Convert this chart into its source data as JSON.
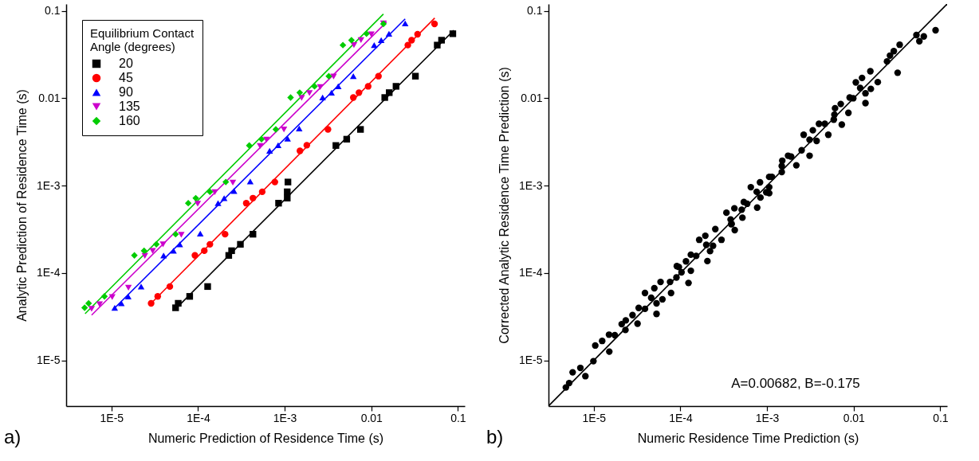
{
  "chart_data": [
    {
      "type": "scatter",
      "xlabel": "Numeric Prediction of Residence Time (s)",
      "ylabel": "Analytic Prediction of Residence Time (s)",
      "log": "xy",
      "xlim": [
        3e-06,
        0.12
      ],
      "ylim": [
        3e-06,
        0.12
      ],
      "xticks": [
        {
          "value": 1e-05,
          "label": "1E-5"
        },
        {
          "value": 0.0001,
          "label": "1E-4"
        },
        {
          "value": 0.001,
          "label": "1E-3"
        },
        {
          "value": 0.01,
          "label": "0.01"
        },
        {
          "value": 0.1,
          "label": "0.1"
        }
      ],
      "yticks": [
        {
          "value": 1e-05,
          "label": "1E-5"
        },
        {
          "value": 0.0001,
          "label": "1E-4"
        },
        {
          "value": 0.001,
          "label": "1E-3"
        },
        {
          "value": 0.01,
          "label": "0.01"
        },
        {
          "value": 0.1,
          "label": "0.1"
        }
      ],
      "legend": "top left",
      "legend_title": "Equilibrium Contact Angle (degrees)",
      "annotations": [
        "a)"
      ],
      "series": [
        {
          "name": "20",
          "color": "#000000",
          "marker": "square",
          "x": [
            5.5e-05,
            5.9e-05,
            8e-05,
            0.000129,
            0.000226,
            0.000244,
            0.000308,
            0.00043,
            0.00085,
            0.00107,
            0.00107,
            0.00109,
            0.0039,
            0.0052,
            0.0075,
            0.0143,
            0.0161,
            0.0193,
            0.0323,
            0.0577,
            0.0647,
            0.0873
          ],
          "values": [
            4e-05,
            4.5e-05,
            5.4e-05,
            7e-05,
            0.000159,
            0.00018,
            0.000213,
            0.000278,
            0.00063,
            0.00072,
            0.00085,
            0.0011,
            0.00288,
            0.0034,
            0.0044,
            0.0102,
            0.0116,
            0.0137,
            0.0179,
            0.0406,
            0.0462,
            0.0548
          ]
        },
        {
          "name": "45",
          "color": "#ff0000",
          "marker": "circle",
          "x": [
            2.87e-05,
            3.42e-05,
            4.72e-05,
            9.2e-05,
            0.000118,
            0.000137,
            0.000205,
            0.00036,
            0.00043,
            0.00055,
            0.00077,
            0.0015,
            0.0018,
            0.00316,
            0.0062,
            0.0072,
            0.0092,
            0.0121,
            0.0264,
            0.0292,
            0.0342,
            0.0537
          ],
          "values": [
            4.5e-05,
            5.4e-05,
            7e-05,
            0.000159,
            0.00018,
            0.000213,
            0.000278,
            0.00063,
            0.00072,
            0.00085,
            0.0011,
            0.0025,
            0.0029,
            0.0044,
            0.0102,
            0.0116,
            0.0137,
            0.0179,
            0.0406,
            0.0462,
            0.054,
            0.071
          ]
        },
        {
          "name": "90",
          "color": "#0000ff",
          "marker": "triangle",
          "x": [
            1.09e-05,
            1.3e-05,
            1.56e-05,
            2.2e-05,
            4e-05,
            5.2e-05,
            6.15e-05,
            0.000106,
            0.00017,
            0.0002,
            0.00026,
            0.0004,
            0.00067,
            0.00084,
            0.00108,
            0.00147,
            0.00274,
            0.00347,
            0.00415,
            0.0062,
            0.0108,
            0.013,
            0.016,
            0.0246
          ],
          "values": [
            4e-05,
            4.5e-05,
            5.4e-05,
            7e-05,
            0.000159,
            0.00018,
            0.000213,
            0.000282,
            0.00063,
            0.00072,
            0.00087,
            0.00112,
            0.0025,
            0.0029,
            0.00345,
            0.0045,
            0.0102,
            0.0116,
            0.0137,
            0.0179,
            0.0406,
            0.0462,
            0.0548,
            0.072
          ]
        },
        {
          "name": "135",
          "color": "#cc00cc",
          "marker": "triangle-down",
          "x": [
            5.9e-06,
            7.3e-06,
            1.02e-05,
            1.57e-05,
            2.43e-05,
            2.99e-05,
            3.94e-05,
            6.4e-05,
            9.9e-05,
            0.000156,
            0.000252,
            0.00052,
            0.000615,
            0.00098,
            0.00157,
            0.00193,
            0.00257,
            0.00367,
            0.0063,
            0.0076,
            0.01,
            0.0138
          ],
          "values": [
            3.9e-05,
            4.4e-05,
            5.3e-05,
            6.8e-05,
            0.000157,
            0.000179,
            0.000213,
            0.000274,
            0.00062,
            0.00084,
            0.00108,
            0.00284,
            0.00337,
            0.0044,
            0.0101,
            0.0115,
            0.0134,
            0.0177,
            0.0406,
            0.0462,
            0.054,
            0.072
          ]
        },
        {
          "name": "160",
          "color": "#00cc00",
          "marker": "diamond",
          "x": [
            4.9e-06,
            5.45e-06,
            8.3e-06,
            1.84e-05,
            2.38e-05,
            3.3e-05,
            5.5e-05,
            7.7e-05,
            9.4e-05,
            0.000137,
            0.000209,
            0.00039,
            0.00054,
            0.00079,
            0.00117,
            0.00149,
            0.00221,
            0.00323,
            0.0047,
            0.0059,
            0.0088,
            0.0138
          ],
          "values": [
            4e-05,
            4.5e-05,
            5.4e-05,
            0.000159,
            0.00018,
            0.000213,
            0.000278,
            0.00063,
            0.00072,
            0.00085,
            0.0011,
            0.00288,
            0.0034,
            0.0044,
            0.0102,
            0.0116,
            0.0137,
            0.0179,
            0.0406,
            0.0462,
            0.0548,
            0.071
          ]
        },
        {
          "type": "line",
          "color": "#000000",
          "x": [
            6.1e-05,
            0.0897
          ],
          "values": [
            4.3e-05,
            0.06
          ]
        },
        {
          "type": "line",
          "color": "#ff0000",
          "x": [
            2.87e-05,
            0.054
          ],
          "values": [
            4.5e-05,
            0.083
          ]
        },
        {
          "type": "line",
          "color": "#0000ff",
          "x": [
            1.03e-05,
            0.0246
          ],
          "values": [
            3.76e-05,
            0.081
          ]
        },
        {
          "type": "line",
          "color": "#cc00cc",
          "x": [
            5.9e-06,
            0.015
          ],
          "values": [
            3.3e-05,
            0.0746
          ]
        },
        {
          "type": "line",
          "color": "#00cc00",
          "x": [
            4.96e-06,
            0.0138
          ],
          "values": [
            3.42e-05,
            0.092
          ]
        }
      ]
    },
    {
      "type": "scatter",
      "xlabel": "Numeric Residence Time Prediction (s)",
      "ylabel": "Corrected Analytic Residence Time Prediction (s)",
      "log": "xy",
      "xlim": [
        3e-06,
        0.12
      ],
      "ylim": [
        3e-06,
        0.12
      ],
      "xticks": [
        {
          "value": 1e-05,
          "label": "1E-5"
        },
        {
          "value": 0.0001,
          "label": "1E-4"
        },
        {
          "value": 0.001,
          "label": "1E-3"
        },
        {
          "value": 0.01,
          "label": "0.01"
        },
        {
          "value": 0.1,
          "label": "0.1"
        }
      ],
      "yticks": [
        {
          "value": 1e-05,
          "label": "1E-5"
        },
        {
          "value": 0.0001,
          "label": "1E-4"
        },
        {
          "value": 0.001,
          "label": "1E-3"
        },
        {
          "value": 0.01,
          "label": "0.01"
        },
        {
          "value": 0.1,
          "label": "0.1"
        }
      ],
      "annotations": [
        "b)",
        "A=0.00682, B=-0.175"
      ],
      "series": [
        {
          "color": "#000000",
          "marker": "circle",
          "x": [
            4.76e-06,
            5.2e-06,
            5.7e-06,
            7e-06,
            8e-06,
            9.9e-06,
            1.04e-05,
            1.25e-05,
            1.5e-05,
            1.51e-05,
            1.75e-05,
            2.1e-05,
            2.34e-05,
            2.32e-05,
            2.8e-05,
            3.2e-05,
            3.3e-05,
            3.9e-05,
            3.9e-05,
            4.6e-05,
            5e-05,
            5.3e-05,
            5.3e-05,
            5.9e-05,
            6.2e-05,
            7.6e-05,
            7.8e-05,
            9e-05,
            9.1e-05,
            9.6e-05,
            0.000103,
            0.000116,
            0.000124,
            0.000132,
            0.000132,
            0.000152,
            0.000165,
            0.000194,
            0.000199,
            0.000205,
            0.00022,
            0.000238,
            0.000253,
            0.000298,
            0.000386,
            0.000424,
            0.00034,
            0.00038,
            0.00039,
            0.00042,
            0.00051,
            0.00052,
            0.00054,
            0.00059,
            0.00065,
            0.00076,
            0.00077,
            0.00083,
            0.00084,
            0.00098,
            0.00106,
            0.00106,
            0.00106,
            0.00114,
            0.00148,
            0.00148,
            0.0015,
            0.00175,
            0.0019,
            0.00218,
            0.00251,
            0.00265,
            0.0031,
            0.0031,
            0.00338,
            0.00374,
            0.00398,
            0.00465,
            0.0051,
            0.0059,
            0.006,
            0.0061,
            0.0071,
            0.0073,
            0.0087,
            0.009,
            0.0099,
            0.0106,
            0.0119,
            0.0125,
            0.0137,
            0.0137,
            0.0156,
            0.0158,
            0.019,
            0.0243,
            0.0263,
            0.0291,
            0.0322,
            0.034,
            0.0531,
            0.0574,
            0.0646,
            0.0883
          ],
          "values": [
            4.9e-06,
            5.5e-06,
            7.3e-06,
            8.2e-06,
            6.6e-06,
            9.8e-06,
            1.48e-05,
            1.67e-05,
            1.97e-05,
            1.26e-05,
            1.94e-05,
            2.6e-05,
            2.87e-05,
            2.23e-05,
            3.3e-05,
            2.63e-05,
            3.98e-05,
            3.89e-05,
            5.9e-05,
            5.2e-05,
            6.7e-05,
            4.5e-05,
            3.4e-05,
            7.9e-05,
            5e-05,
            7.9e-05,
            5.9e-05,
            8.9e-05,
            0.00012,
            0.000117,
            0.000102,
            0.000136,
            7.7e-05,
            0.000106,
            0.000162,
            0.000157,
            0.00024,
            0.000267,
            0.00021,
            0.000137,
            0.000178,
            0.000205,
            0.000318,
            0.00024,
            0.000362,
            0.00031,
            0.00049,
            0.00041,
            0.000365,
            0.00055,
            0.00053,
            0.00043,
            0.00065,
            0.00062,
            0.00096,
            0.00085,
            0.00056,
            0.00109,
            0.00073,
            0.00084,
            0.00082,
            0.00096,
            0.00126,
            0.00126,
            0.00143,
            0.00168,
            0.00193,
            0.0022,
            0.00215,
            0.00171,
            0.00254,
            0.00382,
            0.00335,
            0.0022,
            0.0043,
            0.00325,
            0.0051,
            0.0051,
            0.00382,
            0.0057,
            0.0065,
            0.0077,
            0.0086,
            0.005,
            0.0068,
            0.0102,
            0.01,
            0.0152,
            0.0131,
            0.0171,
            0.0114,
            0.0088,
            0.0204,
            0.0128,
            0.0153,
            0.0264,
            0.0308,
            0.0346,
            0.0196,
            0.041,
            0.053,
            0.045,
            0.051,
            0.06
          ]
        },
        {
          "type": "line",
          "color": "#000000",
          "x": [
            3e-06,
            0.12
          ],
          "values": [
            3e-06,
            0.12
          ]
        }
      ]
    }
  ]
}
